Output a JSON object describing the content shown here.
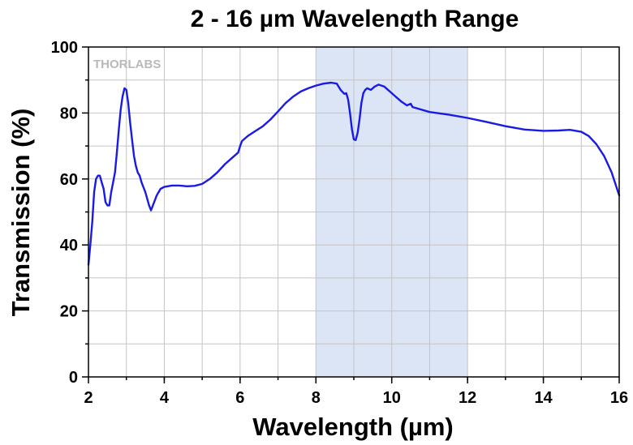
{
  "chart_data": {
    "type": "line",
    "title": "2 - 16 µm Wavelength Range",
    "xlabel": "Wavelength (µm)",
    "ylabel": "Transmission (%)",
    "xlim": [
      2,
      16
    ],
    "ylim": [
      0,
      100
    ],
    "x_ticks": [
      2,
      4,
      6,
      8,
      10,
      12,
      14,
      16
    ],
    "y_ticks": [
      0,
      20,
      40,
      60,
      80,
      100
    ],
    "grid": true,
    "watermark": "THORLABS",
    "highlight_band": {
      "x_range": [
        8,
        12
      ],
      "color": "#dbe5f6"
    },
    "series": [
      {
        "color": "#1a1ae6",
        "points": [
          [
            2.0,
            34
          ],
          [
            2.05,
            40
          ],
          [
            2.1,
            47
          ],
          [
            2.15,
            56
          ],
          [
            2.2,
            60
          ],
          [
            2.25,
            61
          ],
          [
            2.3,
            61
          ],
          [
            2.35,
            59
          ],
          [
            2.4,
            57
          ],
          [
            2.45,
            53
          ],
          [
            2.5,
            52
          ],
          [
            2.55,
            52
          ],
          [
            2.6,
            56
          ],
          [
            2.65,
            59
          ],
          [
            2.7,
            62
          ],
          [
            2.75,
            68
          ],
          [
            2.8,
            75
          ],
          [
            2.85,
            81
          ],
          [
            2.9,
            85
          ],
          [
            2.95,
            87.5
          ],
          [
            3.0,
            87
          ],
          [
            3.05,
            83
          ],
          [
            3.1,
            77
          ],
          [
            3.15,
            72
          ],
          [
            3.2,
            67
          ],
          [
            3.25,
            64
          ],
          [
            3.3,
            62
          ],
          [
            3.35,
            61
          ],
          [
            3.4,
            59
          ],
          [
            3.5,
            56
          ],
          [
            3.6,
            52
          ],
          [
            3.65,
            50.5
          ],
          [
            3.7,
            52
          ],
          [
            3.8,
            55
          ],
          [
            3.9,
            57
          ],
          [
            4.0,
            57.6
          ],
          [
            4.2,
            58
          ],
          [
            4.4,
            58
          ],
          [
            4.6,
            57.8
          ],
          [
            4.8,
            57.9
          ],
          [
            5.0,
            58.5
          ],
          [
            5.2,
            60
          ],
          [
            5.4,
            62
          ],
          [
            5.6,
            64.5
          ],
          [
            5.8,
            66.5
          ],
          [
            5.95,
            68
          ],
          [
            6.0,
            70
          ],
          [
            6.05,
            71.5
          ],
          [
            6.2,
            73
          ],
          [
            6.4,
            74.5
          ],
          [
            6.6,
            76
          ],
          [
            6.8,
            78
          ],
          [
            7.0,
            80.5
          ],
          [
            7.2,
            83
          ],
          [
            7.4,
            85
          ],
          [
            7.6,
            86.5
          ],
          [
            7.8,
            87.5
          ],
          [
            8.0,
            88.3
          ],
          [
            8.2,
            88.9
          ],
          [
            8.4,
            89.2
          ],
          [
            8.55,
            88.9
          ],
          [
            8.65,
            87
          ],
          [
            8.75,
            85.8
          ],
          [
            8.8,
            86
          ],
          [
            8.85,
            84
          ],
          [
            8.9,
            80
          ],
          [
            8.95,
            75
          ],
          [
            9.0,
            72
          ],
          [
            9.05,
            71.8
          ],
          [
            9.1,
            74
          ],
          [
            9.15,
            78
          ],
          [
            9.2,
            83
          ],
          [
            9.25,
            86
          ],
          [
            9.3,
            87
          ],
          [
            9.35,
            87.5
          ],
          [
            9.45,
            87
          ],
          [
            9.55,
            88
          ],
          [
            9.65,
            88.6
          ],
          [
            9.8,
            88
          ],
          [
            9.95,
            86.5
          ],
          [
            10.1,
            85
          ],
          [
            10.25,
            83.5
          ],
          [
            10.4,
            82.3
          ],
          [
            10.5,
            82.8
          ],
          [
            10.55,
            81.8
          ],
          [
            10.7,
            81.3
          ],
          [
            11.0,
            80.3
          ],
          [
            11.5,
            79.5
          ],
          [
            12.0,
            78.5
          ],
          [
            12.5,
            77.3
          ],
          [
            13.0,
            76
          ],
          [
            13.5,
            75
          ],
          [
            14.0,
            74.6
          ],
          [
            14.4,
            74.7
          ],
          [
            14.7,
            74.9
          ],
          [
            15.0,
            74.3
          ],
          [
            15.2,
            73
          ],
          [
            15.4,
            70.5
          ],
          [
            15.6,
            67
          ],
          [
            15.8,
            62
          ],
          [
            15.9,
            58.5
          ],
          [
            16.0,
            55
          ]
        ]
      }
    ]
  }
}
